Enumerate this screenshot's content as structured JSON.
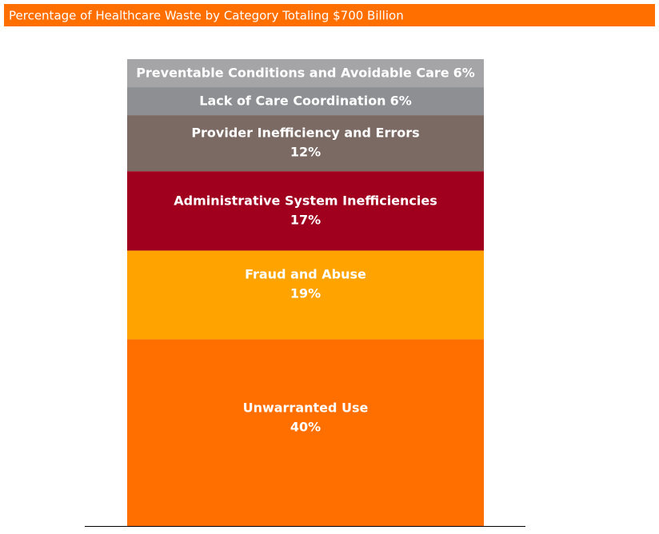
{
  "chart_data": {
    "type": "stacked-bar",
    "title": "Percentage of Healthcare Waste by Category Totaling $700 Billion",
    "series": [
      {
        "name": "Unwarranted Use",
        "color": "#ff6f00",
        "values": [
          40
        ],
        "value_labels": [
          "40%"
        ]
      },
      {
        "name": "Fraud and Abuse",
        "color": "#ffa300",
        "values": [
          19
        ],
        "value_labels": [
          "19%"
        ]
      },
      {
        "name": "Administrative System Inefficiencies",
        "color": "#a0001e",
        "values": [
          17
        ],
        "value_labels": [
          "17%"
        ]
      },
      {
        "name": "Provider Inefficiency and Errors",
        "color": "#7b6a63",
        "values": [
          12
        ],
        "value_labels": [
          "12%"
        ]
      },
      {
        "name": "Lack of Care Coordination",
        "color": "#8e8f93",
        "values": [
          6
        ],
        "value_labels": [
          "6%"
        ]
      },
      {
        "name": "Preventable Conditions and Avoidable Care",
        "color": "#a5a5a8",
        "values": [
          6
        ],
        "value_labels": [
          "6%"
        ]
      }
    ]
  }
}
